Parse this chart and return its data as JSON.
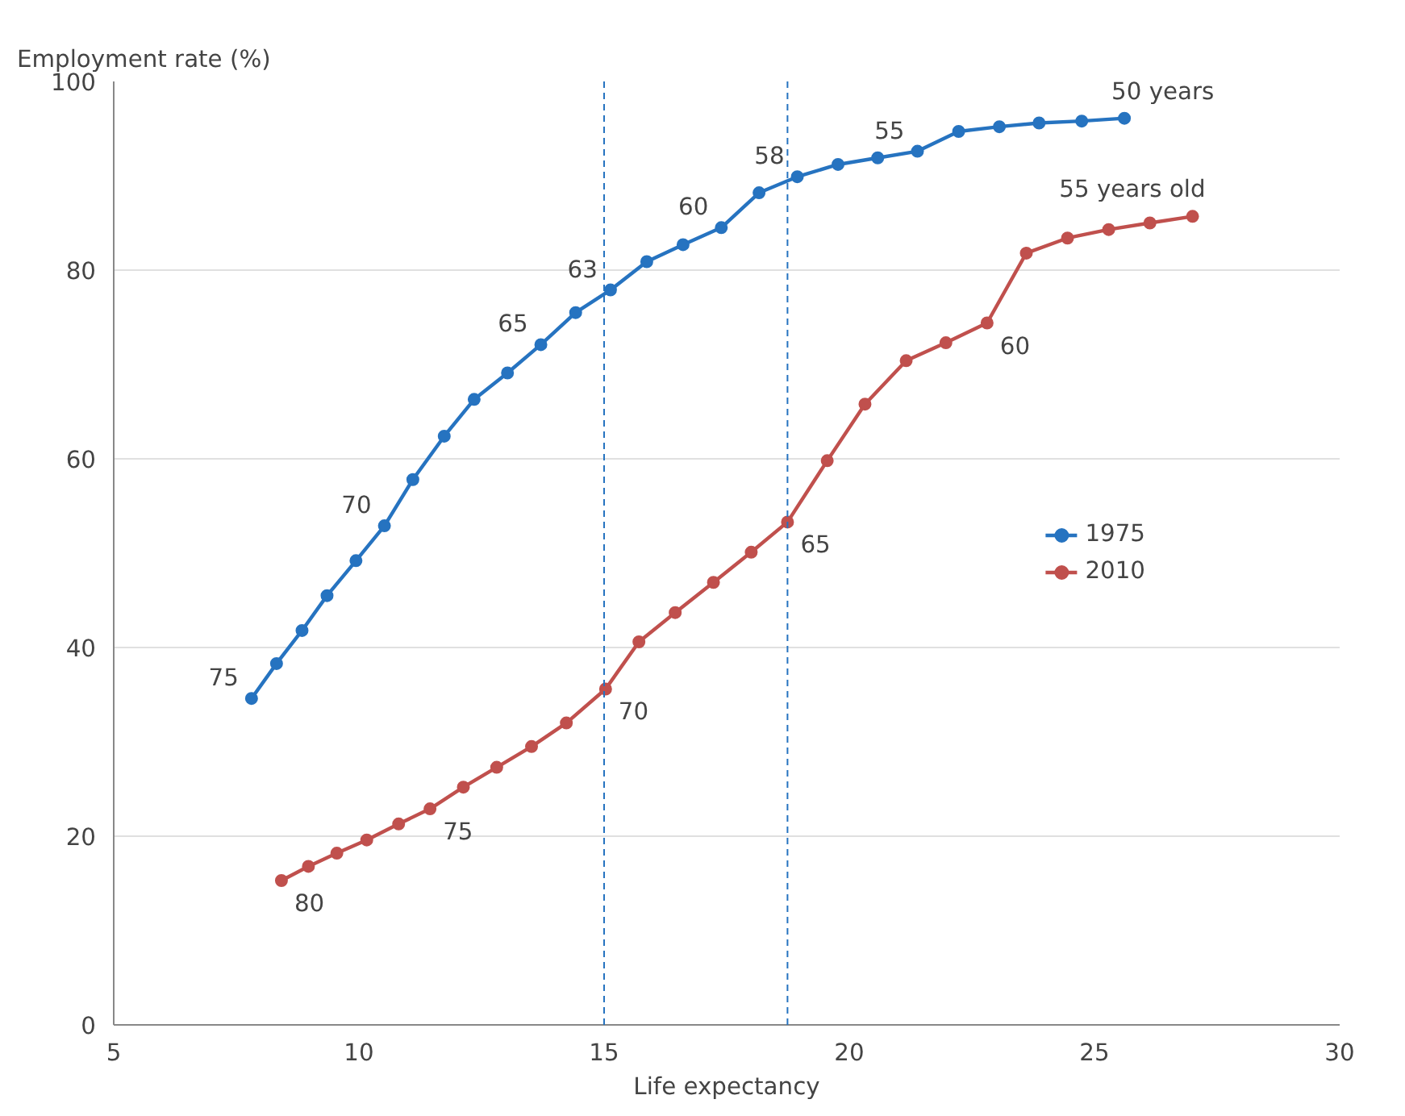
{
  "chart_data": {
    "type": "line",
    "xlabel": "Life expectancy",
    "ylabel": "Employment rate (%)",
    "xlim": [
      5,
      30
    ],
    "xticks": [
      5,
      10,
      15,
      20,
      25,
      30
    ],
    "ylim": [
      0,
      100
    ],
    "yticks": [
      0,
      20,
      40,
      60,
      80,
      100
    ],
    "grid": "y",
    "legend": "right",
    "marker": "circle",
    "line_style": "solid",
    "series": [
      {
        "name": "1975",
        "color": "#2673c0",
        "x": [
          7.81,
          8.32,
          8.84,
          9.35,
          9.94,
          10.52,
          11.1,
          11.74,
          12.35,
          13.03,
          13.71,
          14.42,
          15.13,
          15.87,
          16.61,
          17.39,
          18.16,
          18.94,
          19.77,
          20.58,
          21.39,
          22.23,
          23.06,
          23.87,
          24.74,
          25.61
        ],
        "values": [
          34.6,
          38.3,
          41.8,
          45.5,
          49.2,
          52.9,
          57.8,
          62.4,
          66.3,
          69.1,
          72.1,
          75.5,
          77.9,
          80.9,
          82.7,
          84.5,
          88.2,
          89.9,
          91.2,
          91.9,
          92.6,
          94.7,
          95.2,
          95.6,
          95.8,
          96.1
        ]
      },
      {
        "name": "2010",
        "color": "#c0504d",
        "x": [
          8.42,
          8.97,
          9.55,
          10.16,
          10.81,
          11.45,
          12.13,
          12.81,
          13.52,
          14.23,
          15.03,
          15.71,
          16.45,
          17.23,
          18.0,
          18.74,
          19.55,
          20.32,
          21.16,
          21.97,
          22.81,
          23.61,
          24.45,
          25.29,
          26.13,
          27.0
        ],
        "values": [
          15.3,
          16.8,
          18.2,
          19.6,
          21.3,
          22.9,
          25.2,
          27.3,
          29.5,
          32.0,
          35.6,
          40.6,
          43.7,
          46.9,
          50.1,
          53.3,
          59.8,
          65.8,
          70.4,
          72.3,
          74.4,
          81.8,
          83.4,
          84.3,
          85.0,
          85.7
        ]
      }
    ],
    "ref_lines": [
      {
        "axis": "x",
        "value": 15.0,
        "color": "#2673c0",
        "line_style": "dashed"
      },
      {
        "axis": "x",
        "value": 18.74,
        "color": "#2673c0",
        "line_style": "dashed"
      }
    ],
    "annotations": [
      {
        "text": "75",
        "x": 7.81,
        "y": 34.6
      },
      {
        "text": "70",
        "x": 10.52,
        "y": 52.9
      },
      {
        "text": "65",
        "x": 13.71,
        "y": 72.1
      },
      {
        "text": "63",
        "x": 15.13,
        "y": 77.9
      },
      {
        "text": "60",
        "x": 17.39,
        "y": 84.5
      },
      {
        "text": "58",
        "x": 18.94,
        "y": 89.9
      },
      {
        "text": "55",
        "x": 21.39,
        "y": 92.6
      },
      {
        "text": "50 years",
        "x": 25.61,
        "y": 96.1
      },
      {
        "text": "80",
        "x": 8.42,
        "y": 15.3
      },
      {
        "text": "75",
        "x": 11.45,
        "y": 22.9
      },
      {
        "text": "70",
        "x": 15.03,
        "y": 35.6
      },
      {
        "text": "65",
        "x": 18.74,
        "y": 53.3
      },
      {
        "text": "60",
        "x": 22.81,
        "y": 74.4
      },
      {
        "text": "55 years old",
        "x": 27.0,
        "y": 85.7
      }
    ]
  }
}
